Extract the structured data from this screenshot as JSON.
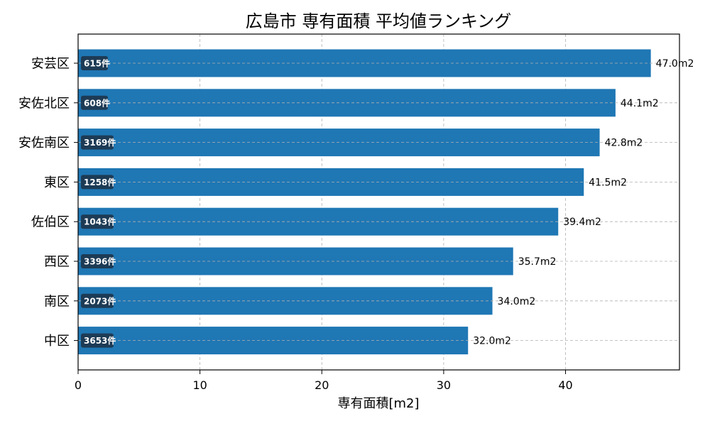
{
  "chart_data": {
    "type": "bar",
    "orientation": "horizontal",
    "title": "広島市 専有面積 平均値ランキング",
    "xlabel": "専有面積[m2]",
    "ylabel": "",
    "xlim": [
      0,
      49.35
    ],
    "xticks": [
      0,
      10,
      20,
      30,
      40
    ],
    "grid": true,
    "bar_color": "#1f77b4",
    "badge_color": "#1d3b55",
    "categories": [
      "安芸区",
      "安佐北区",
      "安佐南区",
      "東区",
      "佐伯区",
      "西区",
      "南区",
      "中区"
    ],
    "values": [
      47.0,
      44.1,
      42.8,
      41.5,
      39.4,
      35.7,
      34.0,
      32.0
    ],
    "value_labels": [
      "47.0m2",
      "44.1m2",
      "42.8m2",
      "41.5m2",
      "39.4m2",
      "35.7m2",
      "34.0m2",
      "32.0m2"
    ],
    "count_labels": [
      "615件",
      "608件",
      "3169件",
      "1258件",
      "1043件",
      "3396件",
      "2073件",
      "3653件"
    ]
  }
}
